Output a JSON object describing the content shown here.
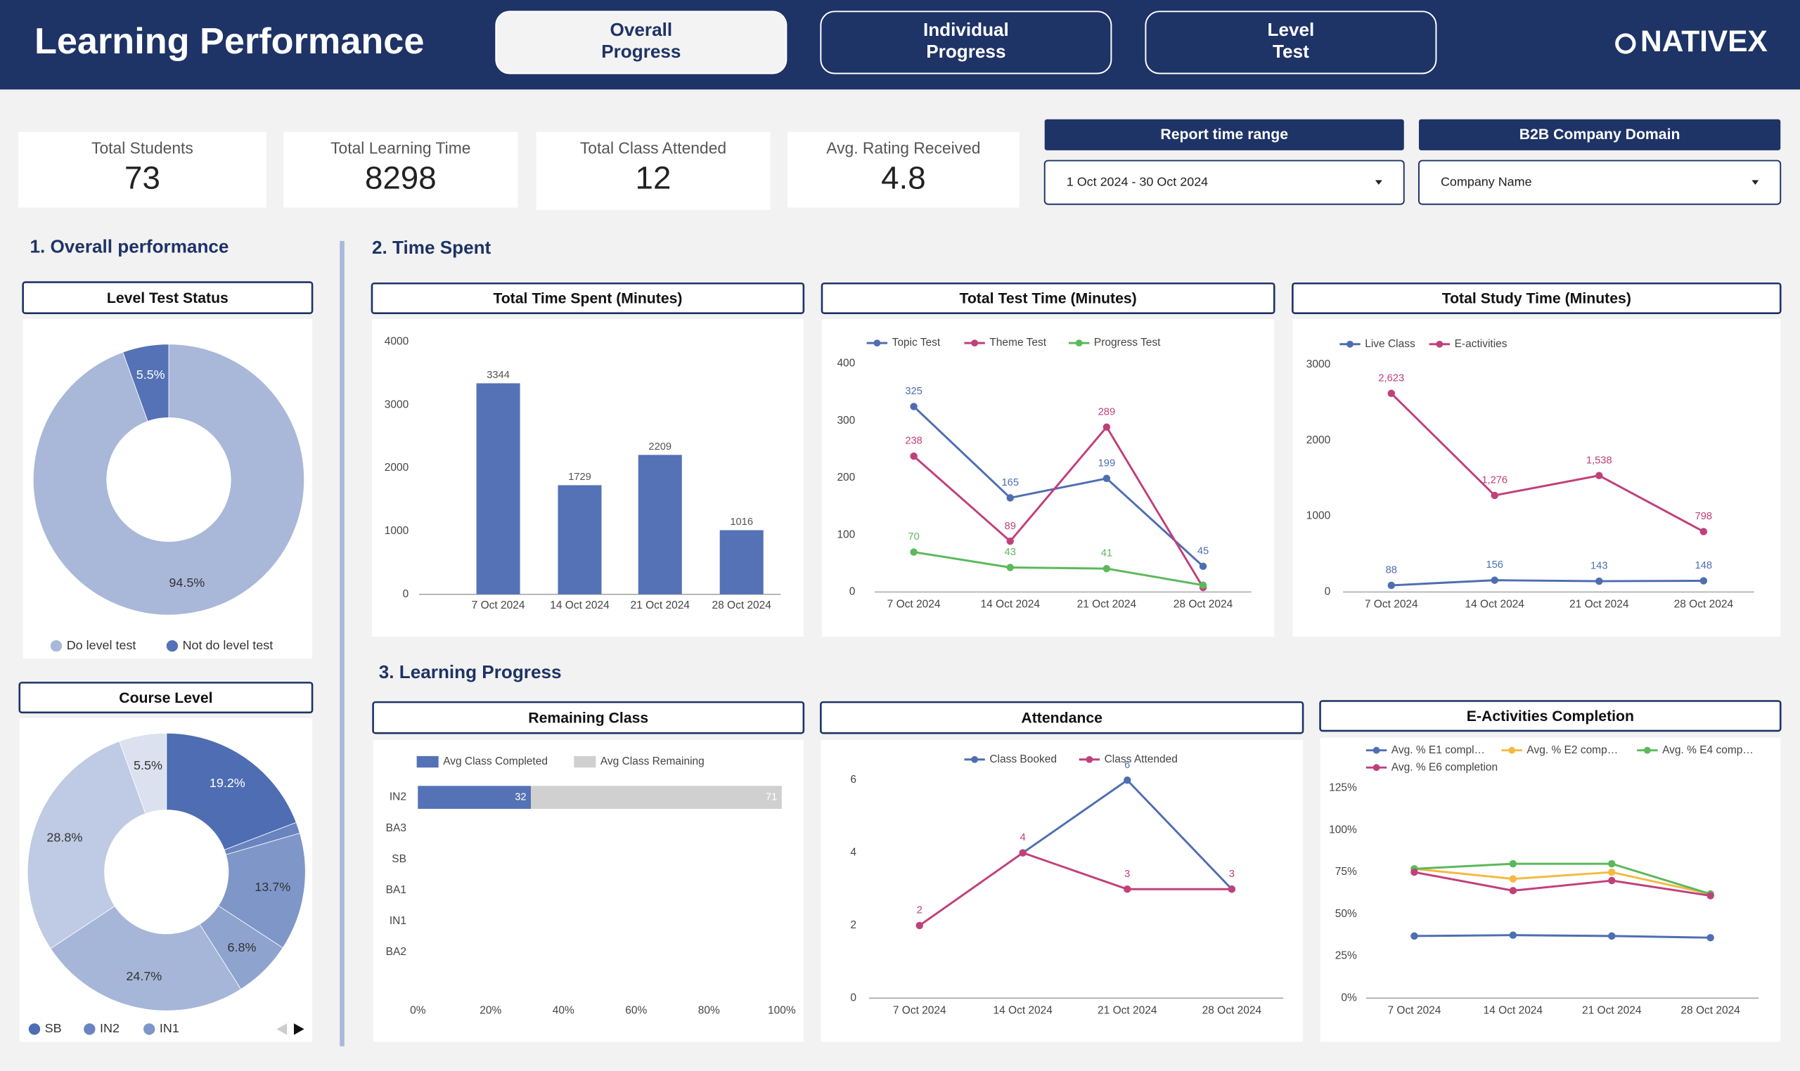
{
  "header": {
    "title": "Learning Performance",
    "tabs": [
      {
        "label": [
          "Overall",
          "Progress"
        ],
        "selected": true
      },
      {
        "label": [
          "Individual",
          "Progress"
        ],
        "selected": false
      },
      {
        "label": [
          "Level",
          "Test"
        ],
        "selected": false
      }
    ],
    "logo": "NATIVEX"
  },
  "kpis": [
    {
      "label": "Total Students",
      "value": 73
    },
    {
      "label": "Total Learning Time",
      "value": 8298
    },
    {
      "label": "Total Class Attended",
      "value": 12
    },
    {
      "label": "Avg. Rating Received",
      "value": 4.8
    }
  ],
  "filters": [
    {
      "label": "Report time range",
      "value": "1 Oct 2024 - 30 Oct 2024"
    },
    {
      "label": "B2B Company Domain",
      "value": "Company Name"
    }
  ],
  "sections": [
    "1. Overall performance",
    "2. Time Spent",
    "3. Learning Progress"
  ],
  "chart_data": [
    {
      "type": "pie",
      "title": "Level Test Status",
      "donut": true,
      "categories": [
        "Do level test",
        "Not do level test"
      ],
      "values": [
        94.5,
        5.5
      ],
      "value_labels": [
        "94.5%",
        "5.5%"
      ],
      "colors": [
        "#a9b8d9",
        "#5472b5"
      ]
    },
    {
      "type": "pie",
      "title": "Course Level",
      "donut": true,
      "categories": [
        "SB",
        "IN2",
        "IN1",
        null,
        null,
        null,
        null
      ],
      "values": [
        19.2,
        1.3,
        13.7,
        6.8,
        24.7,
        28.8,
        5.5
      ],
      "value_labels": [
        "19.2%",
        null,
        "13.7%",
        "6.8%",
        "24.7%",
        "28.8%",
        "5.5%"
      ],
      "colors": [
        "#4e6db3",
        "#6a84c0",
        "#7f96c8",
        "#8fa3cf",
        "#a6b6d9",
        "#bfcae4",
        "#dbe1ef"
      ]
    },
    {
      "type": "bar",
      "title": "Total Time Spent (Minutes)",
      "categories": [
        "7 Oct 2024",
        "14 Oct 2024",
        "21 Oct 2024",
        "28 Oct 2024"
      ],
      "values": [
        3344,
        1729,
        2209,
        1016
      ],
      "color": "#5472b5",
      "data_labels": true,
      "ylim": [
        0,
        4000
      ],
      "yticks": [
        0,
        1000,
        2000,
        3000,
        4000
      ],
      "grid": false
    },
    {
      "type": "line",
      "title": "Total Test Time (Minutes)",
      "categories": [
        "7 Oct 2024",
        "14 Oct 2024",
        "21 Oct 2024",
        "28 Oct 2024"
      ],
      "series": [
        {
          "name": "Topic Test",
          "color": "#4e6eb1",
          "values": [
            325,
            165,
            199,
            45
          ]
        },
        {
          "name": "Theme Test",
          "color": "#c0407a",
          "values": [
            238,
            89,
            289,
            8
          ],
          "value_labels": [
            "238",
            "89",
            "289",
            null
          ]
        },
        {
          "name": "Progress Test",
          "color": "#5cb85c",
          "values": [
            70,
            43,
            41,
            12
          ],
          "value_labels": [
            "70",
            "43",
            "41",
            null
          ]
        }
      ],
      "data_labels": true,
      "ylim": [
        0,
        400
      ],
      "yticks": [
        0,
        100,
        200,
        300,
        400
      ],
      "grid": false,
      "legend": "top"
    },
    {
      "type": "line",
      "title": "Total Study Time (Minutes)",
      "categories": [
        "7 Oct 2024",
        "14 Oct 2024",
        "21 Oct 2024",
        "28 Oct 2024"
      ],
      "series": [
        {
          "name": "Live Class",
          "color": "#4e6eb1",
          "values": [
            88,
            156,
            143,
            148
          ]
        },
        {
          "name": "E-activities",
          "color": "#c0407a",
          "values": [
            2623,
            1276,
            1538,
            798
          ],
          "value_labels": [
            "2,623",
            "1,276",
            "1,538",
            "798"
          ]
        }
      ],
      "data_labels": true,
      "ylim": [
        0,
        3000
      ],
      "yticks": [
        0,
        1000,
        2000,
        3000
      ],
      "grid": false,
      "legend": "top"
    },
    {
      "type": "hbar",
      "title": "Remaining Class",
      "stacked": "percent",
      "categories": [
        "IN2",
        "BA3",
        "SB",
        "BA1",
        "IN1",
        "BA2"
      ],
      "series": [
        {
          "name": "Avg Class Completed",
          "color": "#5472b5",
          "values": [
            32,
            null,
            null,
            null,
            null,
            null
          ]
        },
        {
          "name": "Avg Class Remaining",
          "color": "#d0d0d0",
          "values": [
            71,
            null,
            null,
            null,
            null,
            null
          ]
        }
      ],
      "data_labels": true,
      "xlim": [
        0,
        100
      ],
      "xticks": [
        {
          "value": 0,
          "label": "0%"
        },
        {
          "value": 20,
          "label": "20%"
        },
        {
          "value": 40,
          "label": "40%"
        },
        {
          "value": 60,
          "label": "60%"
        },
        {
          "value": 80,
          "label": "80%"
        },
        {
          "value": 100,
          "label": "100%"
        }
      ],
      "grid": false,
      "legend": "top"
    },
    {
      "type": "line",
      "title": "Attendance",
      "categories": [
        "7 Oct 2024",
        "14 Oct 2024",
        "21 Oct 2024",
        "28 Oct 2024"
      ],
      "series": [
        {
          "name": "Class Booked",
          "color": "#4e6eb1",
          "values": [
            null,
            4,
            6,
            3
          ],
          "value_labels": [
            null,
            null,
            "6",
            null
          ]
        },
        {
          "name": "Class Attended",
          "color": "#c0407a",
          "values": [
            2,
            4,
            3,
            3
          ]
        }
      ],
      "data_labels": true,
      "ylim": [
        0,
        6
      ],
      "yticks": [
        0,
        2,
        4,
        6
      ],
      "grid": false,
      "legend": "top"
    },
    {
      "type": "line",
      "title": "E-Activities Completion",
      "categories": [
        "7 Oct 2024",
        "14 Oct 2024",
        "21 Oct 2024",
        "28 Oct 2024"
      ],
      "series": [
        {
          "name": "Avg. % E1 compl…",
          "color": "#4e6eb1",
          "values": [
            37,
            37.5,
            37,
            36
          ]
        },
        {
          "name": "Avg. % E2 comp…",
          "color": "#f5b942",
          "values": [
            77,
            71,
            75,
            62
          ]
        },
        {
          "name": "Avg. % E4 comp…",
          "color": "#5cb85c",
          "values": [
            77,
            80,
            80,
            62
          ]
        },
        {
          "name": "Avg. % E6 completion",
          "color": "#c0407a",
          "values": [
            75,
            64,
            70,
            61
          ]
        }
      ],
      "data_labels": false,
      "ylim": [
        0,
        125
      ],
      "yticks": [
        {
          "value": 0,
          "label": "0%"
        },
        {
          "value": 25,
          "label": "25%"
        },
        {
          "value": 50,
          "label": "50%"
        },
        {
          "value": 75,
          "label": "75%"
        },
        {
          "value": 100,
          "label": "100%"
        },
        {
          "value": 125,
          "label": "125%"
        }
      ],
      "grid": false,
      "legend": "top"
    }
  ]
}
